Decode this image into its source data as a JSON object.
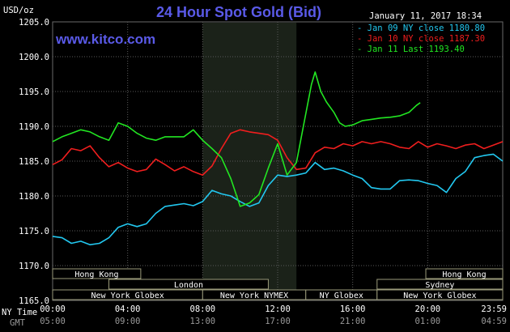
{
  "chart_data": {
    "type": "line",
    "title": "24 Hour Spot Gold (Bid)",
    "website": "www.kitco.com",
    "timestamp": "January 11, 2017 18:34",
    "y_unit": "USD/oz",
    "ylim": [
      1165.0,
      1205.0
    ],
    "y_ticks": [
      "1205.0",
      "1200.0",
      "1195.0",
      "1190.0",
      "1185.0",
      "1180.0",
      "1175.0",
      "1170.0",
      "1165.0"
    ],
    "x_label_ny": "NY Time",
    "x_label_gmt": "GMT",
    "x_ticks_ny": [
      "00:00",
      "04:00",
      "08:00",
      "12:00",
      "16:00",
      "20:00",
      "23:59"
    ],
    "x_ticks_gmt": [
      "05:00",
      "09:00",
      "13:00",
      "17:00",
      "21:00",
      "01:00",
      "04:59"
    ],
    "x_range_hours": [
      0,
      24
    ],
    "highlight_hours": [
      8,
      13
    ],
    "markets_row1": [
      {
        "name": "Hong Kong",
        "start": 0,
        "end": 4.7
      },
      {
        "name": "Hong Kong",
        "start": 19.9,
        "end": 24
      }
    ],
    "markets_row2": [
      {
        "name": "London",
        "start": 3,
        "end": 11.5
      },
      {
        "name": "Sydney",
        "start": 17.3,
        "end": 24
      }
    ],
    "markets_row3": [
      {
        "name": "New York Globex",
        "start": 0,
        "end": 8
      },
      {
        "name": "New York NYMEX",
        "start": 8,
        "end": 13.5
      },
      {
        "name": "NY Globex",
        "start": 13.5,
        "end": 17.3
      },
      {
        "name": "New York Globex",
        "start": 17.3,
        "end": 24
      }
    ],
    "series": [
      {
        "name": "Jan 09 NY close 1180.80",
        "color": "#22c8f0",
        "points": [
          [
            0,
            1174.2
          ],
          [
            0.5,
            1174.0
          ],
          [
            1,
            1173.2
          ],
          [
            1.5,
            1173.5
          ],
          [
            2,
            1173.0
          ],
          [
            2.5,
            1173.2
          ],
          [
            3,
            1174.0
          ],
          [
            3.5,
            1175.5
          ],
          [
            4,
            1176.0
          ],
          [
            4.5,
            1175.6
          ],
          [
            5,
            1176.0
          ],
          [
            5.5,
            1177.5
          ],
          [
            6,
            1178.5
          ],
          [
            6.5,
            1178.7
          ],
          [
            7,
            1178.9
          ],
          [
            7.5,
            1178.6
          ],
          [
            8,
            1179.2
          ],
          [
            8.5,
            1180.8
          ],
          [
            9,
            1180.3
          ],
          [
            9.5,
            1180.0
          ],
          [
            10,
            1179.2
          ],
          [
            10.5,
            1178.5
          ],
          [
            11,
            1179.0
          ],
          [
            11.5,
            1181.5
          ],
          [
            12,
            1183.0
          ],
          [
            12.5,
            1182.8
          ],
          [
            13,
            1183.0
          ],
          [
            13.5,
            1183.3
          ],
          [
            14,
            1184.8
          ],
          [
            14.5,
            1183.8
          ],
          [
            15,
            1184.0
          ],
          [
            15.5,
            1183.6
          ],
          [
            16,
            1183.0
          ],
          [
            16.5,
            1182.5
          ],
          [
            17,
            1181.2
          ],
          [
            17.5,
            1181.0
          ],
          [
            18,
            1181.0
          ],
          [
            18.5,
            1182.2
          ],
          [
            19,
            1182.3
          ],
          [
            19.5,
            1182.2
          ],
          [
            20,
            1181.8
          ],
          [
            20.5,
            1181.5
          ],
          [
            21,
            1180.5
          ],
          [
            21.5,
            1182.5
          ],
          [
            22,
            1183.5
          ],
          [
            22.5,
            1185.5
          ],
          [
            23,
            1185.8
          ],
          [
            23.5,
            1186.0
          ],
          [
            24,
            1185.0
          ]
        ]
      },
      {
        "name": "Jan 10 NY close 1187.30",
        "color": "#f01e1e",
        "points": [
          [
            0,
            1184.5
          ],
          [
            0.5,
            1185.2
          ],
          [
            1,
            1186.8
          ],
          [
            1.5,
            1186.5
          ],
          [
            2,
            1187.2
          ],
          [
            2.5,
            1185.5
          ],
          [
            3,
            1184.2
          ],
          [
            3.5,
            1184.8
          ],
          [
            4,
            1184.0
          ],
          [
            4.5,
            1183.5
          ],
          [
            5,
            1183.8
          ],
          [
            5.5,
            1185.3
          ],
          [
            6,
            1184.5
          ],
          [
            6.5,
            1183.6
          ],
          [
            7,
            1184.2
          ],
          [
            7.5,
            1183.5
          ],
          [
            8,
            1183.0
          ],
          [
            8.5,
            1184.3
          ],
          [
            9,
            1186.8
          ],
          [
            9.5,
            1189.0
          ],
          [
            10,
            1189.5
          ],
          [
            10.5,
            1189.2
          ],
          [
            11,
            1189.0
          ],
          [
            11.5,
            1188.8
          ],
          [
            12,
            1188.0
          ],
          [
            12.5,
            1185.5
          ],
          [
            13,
            1183.8
          ],
          [
            13.5,
            1184.0
          ],
          [
            14,
            1186.2
          ],
          [
            14.5,
            1187.0
          ],
          [
            15,
            1186.8
          ],
          [
            15.5,
            1187.5
          ],
          [
            16,
            1187.2
          ],
          [
            16.5,
            1187.8
          ],
          [
            17,
            1187.5
          ],
          [
            17.5,
            1187.8
          ],
          [
            18,
            1187.5
          ],
          [
            18.5,
            1187.0
          ],
          [
            19,
            1186.8
          ],
          [
            19.5,
            1187.8
          ],
          [
            20,
            1187.0
          ],
          [
            20.5,
            1187.5
          ],
          [
            21,
            1187.2
          ],
          [
            21.5,
            1186.8
          ],
          [
            22,
            1187.3
          ],
          [
            22.5,
            1187.5
          ],
          [
            23,
            1186.8
          ],
          [
            23.5,
            1187.3
          ],
          [
            24,
            1187.8
          ]
        ]
      },
      {
        "name": "Jan 11 Last 1193.40",
        "color": "#22e622",
        "points": [
          [
            0,
            1187.8
          ],
          [
            0.5,
            1188.5
          ],
          [
            1,
            1189.0
          ],
          [
            1.5,
            1189.5
          ],
          [
            2,
            1189.2
          ],
          [
            2.5,
            1188.5
          ],
          [
            3,
            1188.0
          ],
          [
            3.5,
            1190.5
          ],
          [
            4,
            1190.0
          ],
          [
            4.5,
            1189.0
          ],
          [
            5,
            1188.3
          ],
          [
            5.5,
            1188.0
          ],
          [
            6,
            1188.5
          ],
          [
            6.5,
            1188.5
          ],
          [
            7,
            1188.5
          ],
          [
            7.5,
            1189.5
          ],
          [
            8,
            1188.0
          ],
          [
            8.5,
            1186.8
          ],
          [
            9,
            1185.5
          ],
          [
            9.5,
            1182.5
          ],
          [
            10,
            1178.5
          ],
          [
            10.5,
            1179.0
          ],
          [
            11,
            1180.2
          ],
          [
            11.5,
            1184.0
          ],
          [
            12,
            1187.5
          ],
          [
            12.5,
            1183.0
          ],
          [
            13,
            1184.8
          ],
          [
            13.3,
            1189.0
          ],
          [
            13.8,
            1196.0
          ],
          [
            14,
            1197.8
          ],
          [
            14.3,
            1195.0
          ],
          [
            14.6,
            1193.5
          ],
          [
            15,
            1192.0
          ],
          [
            15.3,
            1190.5
          ],
          [
            15.6,
            1190.0
          ],
          [
            16,
            1190.2
          ],
          [
            16.5,
            1190.8
          ],
          [
            17,
            1191.0
          ],
          [
            17.5,
            1191.2
          ],
          [
            18,
            1191.3
          ],
          [
            18.5,
            1191.5
          ],
          [
            19,
            1192.0
          ],
          [
            19.4,
            1193.0
          ],
          [
            19.6,
            1193.4
          ]
        ]
      }
    ]
  }
}
